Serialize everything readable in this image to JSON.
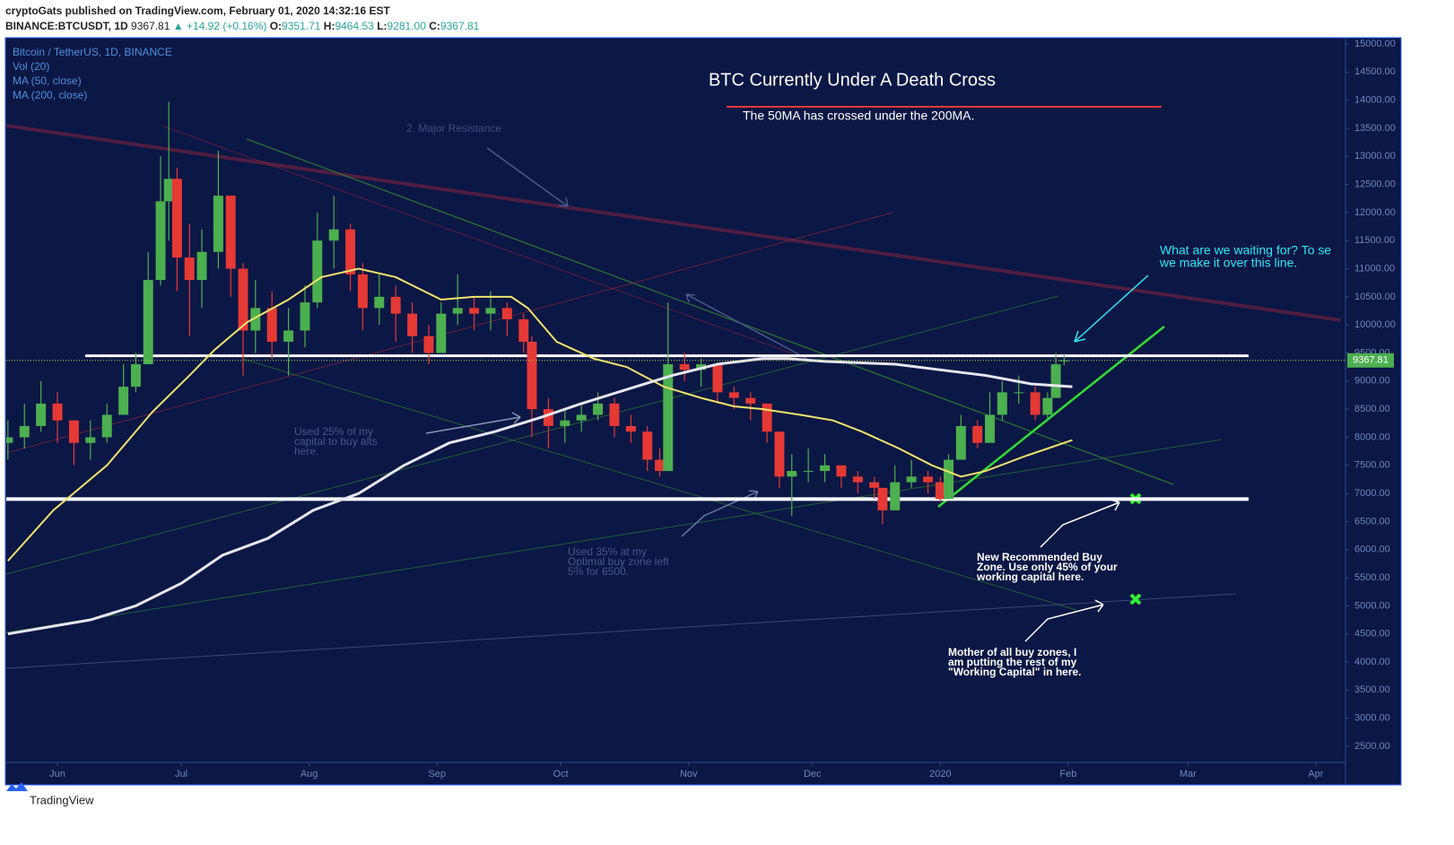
{
  "header": {
    "publisher": "cryptoGats published on TradingView.com, February 01, 2020 14:32:16 EST",
    "symbol": "BINANCE:BTCUSDT, 1D",
    "last": "9367.81",
    "change": "▲ +14.92 (+0.16%)",
    "ohlc": [
      {
        "label": "O:",
        "value": "9351.71"
      },
      {
        "label": "H:",
        "value": "9464.53"
      },
      {
        "label": "L:",
        "value": "9281.00"
      },
      {
        "label": "C:",
        "value": "9367.81"
      }
    ]
  },
  "footer": {
    "brand": "TradingView"
  },
  "chart_data": {
    "type": "candlestick",
    "title": "BTC Currently Under A Death Cross",
    "subtitle": "The 50MA has crossed under the 200MA.",
    "symbol_label": "Bitcoin / TetherUS, 1D, BINANCE",
    "volume_label": "Vol (20)",
    "up_color": "#4caf50",
    "down_color": "#e53935",
    "x": [
      -12,
      -8,
      -4,
      0,
      4,
      8,
      12,
      16,
      19,
      22,
      25,
      27,
      29,
      32,
      35,
      39,
      42,
      45,
      48,
      52,
      56,
      60,
      63,
      67,
      71,
      74,
      78,
      82,
      86,
      90,
      93,
      97,
      101,
      105,
      109,
      113,
      115,
      119,
      123,
      127,
      131,
      135,
      139,
      143,
      146,
      148,
      152,
      156,
      160,
      164,
      168,
      172,
      175,
      178,
      182,
      186,
      190,
      194,
      198,
      200,
      203,
      207,
      211,
      214,
      216,
      219,
      223,
      226,
      229,
      233,
      237,
      240,
      242,
      244
    ],
    "open": [
      7900,
      8000,
      8200,
      8600,
      8300,
      7900,
      8000,
      8400,
      8900,
      9300,
      10800,
      12200,
      12600,
      11200,
      10800,
      11300,
      12300,
      11000,
      9900,
      10300,
      9700,
      9900,
      10400,
      11500,
      11700,
      10900,
      10300,
      10500,
      10200,
      9800,
      9500,
      10200,
      10300,
      10200,
      10300,
      10100,
      9700,
      8500,
      8200,
      8300,
      8400,
      8600,
      8200,
      8100,
      7600,
      7400,
      9300,
      9200,
      9300,
      8800,
      8700,
      8600,
      8100,
      7300,
      7400,
      7400,
      7500,
      7300,
      7200,
      7100,
      6700,
      7200,
      7300,
      7200,
      6900,
      7600,
      8200,
      7900,
      8400,
      8800,
      8800,
      8400,
      8700,
      9351.71
    ],
    "high": [
      8300,
      8600,
      9000,
      8800,
      8300,
      8300,
      8600,
      9300,
      9500,
      11300,
      13000,
      13970,
      12800,
      11800,
      11700,
      13100,
      12300,
      11100,
      10800,
      10600,
      10300,
      10700,
      12000,
      12300,
      11800,
      11100,
      10900,
      10700,
      10400,
      10000,
      10400,
      10900,
      10500,
      10600,
      10400,
      10200,
      9800,
      8700,
      8500,
      8600,
      8800,
      8700,
      8400,
      8200,
      7800,
      10400,
      9500,
      9400,
      9300,
      8900,
      8800,
      8600,
      8100,
      7700,
      7800,
      7700,
      7500,
      7400,
      7300,
      7100,
      7500,
      7600,
      7400,
      7300,
      7700,
      8400,
      8300,
      8800,
      9000,
      9100,
      8900,
      8800,
      9500,
      9464.53
    ],
    "low": [
      7600,
      7800,
      8100,
      7900,
      7500,
      7600,
      7900,
      8400,
      8800,
      9300,
      10700,
      11500,
      10600,
      9800,
      10300,
      11000,
      10500,
      9100,
      9500,
      9400,
      9100,
      9600,
      10300,
      11000,
      10600,
      9900,
      10000,
      9700,
      9500,
      9300,
      9500,
      10000,
      9900,
      9900,
      9800,
      9500,
      8000,
      7800,
      7900,
      8100,
      8300,
      8000,
      7900,
      7400,
      7300,
      7400,
      9000,
      8900,
      8600,
      8500,
      8300,
      7900,
      7100,
      6600,
      7200,
      7200,
      7100,
      7000,
      6900,
      6450,
      6700,
      7100,
      7000,
      6850,
      6900,
      7600,
      7800,
      7900,
      8300,
      8600,
      8300,
      8300,
      8700,
      9281
    ],
    "close": [
      8000,
      8200,
      8600,
      8300,
      7900,
      8000,
      8400,
      8900,
      9300,
      10800,
      12200,
      12600,
      11200,
      10800,
      11300,
      12300,
      11000,
      9900,
      10300,
      9700,
      9900,
      10400,
      11500,
      11700,
      10900,
      10300,
      10500,
      10200,
      9800,
      9500,
      10200,
      10300,
      10200,
      10300,
      10100,
      9700,
      8500,
      8200,
      8300,
      8400,
      8600,
      8200,
      8100,
      7600,
      7400,
      9300,
      9200,
      9300,
      8800,
      8700,
      8600,
      8100,
      7300,
      7400,
      7400,
      7500,
      7300,
      7200,
      7100,
      6700,
      7200,
      7300,
      7200,
      6900,
      7600,
      8200,
      7900,
      8400,
      8800,
      8800,
      8400,
      8700,
      9300,
      9367.81
    ],
    "series": [
      {
        "name": "MA (50, close)",
        "color": "#f2e46b",
        "x": [
          -12,
          -1,
          12,
          23,
          32,
          38,
          46,
          56,
          64,
          73,
          82,
          93,
          101,
          110,
          114,
          121,
          130,
          138,
          147,
          156,
          164,
          171,
          180,
          188,
          195,
          204,
          212,
          219,
          225,
          234,
          240,
          246
        ],
        "values": [
          5800,
          6700,
          7500,
          8450,
          9100,
          9550,
          10050,
          10450,
          10850,
          11000,
          10850,
          10450,
          10500,
          10500,
          10300,
          9700,
          9400,
          9250,
          8900,
          8700,
          8550,
          8500,
          8400,
          8300,
          8100,
          7800,
          7500,
          7300,
          7400,
          7650,
          7800,
          7950
        ]
      },
      {
        "name": "MA (200, close)",
        "color": "#e6e6f0",
        "x": [
          -12,
          8,
          19,
          30,
          40,
          51,
          62,
          73,
          84,
          95,
          106,
          117,
          127,
          138,
          149,
          160,
          171,
          177,
          186,
          203,
          214,
          225,
          236,
          246
        ],
        "values": [
          4500,
          4750,
          5000,
          5400,
          5900,
          6200,
          6700,
          7000,
          7500,
          7900,
          8100,
          8350,
          8600,
          8850,
          9100,
          9300,
          9400,
          9400,
          9350,
          9300,
          9200,
          9100,
          8950,
          8900
        ]
      }
    ],
    "hlines": [
      9450,
      6900
    ],
    "xlim": [
      -12.4,
      312.2
    ],
    "xticks": [
      {
        "value": 0,
        "label": "Jun"
      },
      {
        "value": 30,
        "label": "Jul"
      },
      {
        "value": 61,
        "label": "Aug"
      },
      {
        "value": 92,
        "label": "Sep"
      },
      {
        "value": 122,
        "label": "Oct"
      },
      {
        "value": 153,
        "label": "Nov"
      },
      {
        "value": 183,
        "label": "Dec"
      },
      {
        "value": 214,
        "label": "2020"
      },
      {
        "value": 245,
        "label": "Feb"
      },
      {
        "value": 274,
        "label": "Mar"
      },
      {
        "value": 305,
        "label": "Apr"
      }
    ],
    "ylim": [
      2212,
      15112
    ],
    "yticks": [
      {
        "value": 2500,
        "label": "2500.00"
      },
      {
        "value": 3000,
        "label": "3000.00"
      },
      {
        "value": 3500,
        "label": "3500.00"
      },
      {
        "value": 4000,
        "label": "4000.00"
      },
      {
        "value": 4500,
        "label": "4500.00"
      },
      {
        "value": 5000,
        "label": "5000.00"
      },
      {
        "value": 5500,
        "label": "5500.00"
      },
      {
        "value": 6000,
        "label": "6000.00"
      },
      {
        "value": 6500,
        "label": "6500.00"
      },
      {
        "value": 7000,
        "label": "7000.00"
      },
      {
        "value": 7500,
        "label": "7500.00"
      },
      {
        "value": 8000,
        "label": "8000.00"
      },
      {
        "value": 8500,
        "label": "8500.00"
      },
      {
        "value": 9000,
        "label": "9000.00"
      },
      {
        "value": 9500,
        "label": "9500.00"
      },
      {
        "value": 10000,
        "label": "10000.00"
      },
      {
        "value": 10500,
        "label": "10500.00"
      },
      {
        "value": 11000,
        "label": "11000.00"
      },
      {
        "value": 11500,
        "label": "11500.00"
      },
      {
        "value": 12000,
        "label": "12000.00"
      },
      {
        "value": 12500,
        "label": "12500.00"
      },
      {
        "value": 13000,
        "label": "13000.00"
      },
      {
        "value": 13500,
        "label": "13500.00"
      },
      {
        "value": 14000,
        "label": "14000.00"
      },
      {
        "value": 14500,
        "label": "14500.00"
      },
      {
        "value": 15000,
        "label": "15000.00"
      }
    ],
    "annotations": [
      {
        "color": "#3e4f80",
        "lines": [
          "2. Major Resistance"
        ]
      },
      {
        "color": "#2ee6f5",
        "lines": [
          "What are we waiting for? To se",
          "we make it over this line."
        ]
      },
      {
        "color": "#46578a",
        "lines": [
          "Used 25% of my",
          "capital to buy alts",
          "here."
        ]
      },
      {
        "color": "#46578a",
        "lines": [
          "Used 35% at my",
          "Optimal buy zone left",
          "5% for 6500."
        ]
      },
      {
        "color": "#ffffff",
        "lines": [
          "New Recommended Buy",
          "Zone. Use only 45% of your",
          "working capital here."
        ]
      },
      {
        "color": "#ffffff",
        "lines": [
          "Mother of all buy zones, I",
          "am putting the rest of my",
          "\"Working Capital\" in here."
        ]
      }
    ]
  }
}
